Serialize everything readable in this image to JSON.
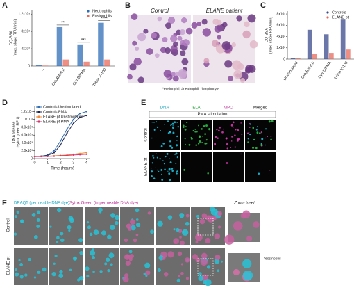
{
  "panel_labels": [
    "A",
    "B",
    "C",
    "D",
    "E",
    "F"
  ],
  "chart_data": [
    {
      "type": "bar",
      "ylabel": [
        "DQ-BSA",
        "(max. slope RFU/min)"
      ],
      "categories": [
        "–",
        "CytoB/fMLF",
        "CytoB/PMA",
        "Triton X-100"
      ],
      "series": [
        {
          "name": "Neutrophils",
          "color": "#2f6db5",
          "values": [
            30,
            900,
            500,
            1000
          ]
        },
        {
          "name": "Eosinophils",
          "color": "#e8695c",
          "values": [
            10,
            150,
            100,
            150
          ]
        }
      ],
      "annotations": [
        "**",
        "***",
        "****"
      ],
      "ylim": [
        0,
        1300
      ],
      "yticks": [
        0,
        {
          "value": 400,
          "label": "4x10²"
        },
        {
          "value": 800,
          "label": "8x10²"
        },
        {
          "value": 1200,
          "label": "1.2x10³"
        }
      ],
      "legend": "upper right"
    },
    {
      "type": "bar",
      "ylabel": [
        "DQ-BSA",
        "(max. slope RFU/min)"
      ],
      "categories": [
        "Unstimulated",
        "CytoB/fMLF",
        "CytoB/PMA",
        "Triton X-100"
      ],
      "series": [
        {
          "name": "Controls",
          "color": "#3b4a8c",
          "values": [
            20,
            520,
            440,
            700
          ]
        },
        {
          "name": "ELANE pt",
          "color": "#e8695c",
          "values": [
            20,
            90,
            110,
            170
          ]
        }
      ],
      "ylim": [
        0,
        850
      ],
      "yticks": [
        0,
        {
          "value": 200,
          "label": "2x10²"
        },
        {
          "value": 400,
          "label": "4x10²"
        },
        {
          "value": 600,
          "label": "6x10²"
        },
        {
          "value": 800,
          "label": "8x10²"
        }
      ],
      "legend": "upper right"
    },
    {
      "type": "line",
      "ylabel": [
        "DNA release",
        "(sytox green RFU)"
      ],
      "xlabel": "Time (hours)",
      "x": [
        0,
        0.5,
        1,
        1.5,
        2,
        2.5,
        3,
        3.5,
        4
      ],
      "series": [
        {
          "name": "Controls Unstimulated",
          "color": "#2f6db5",
          "values": [
            500,
            600,
            900,
            2000,
            4500,
            7500,
            10000,
            11500,
            12000
          ]
        },
        {
          "name": "Controls PMA",
          "color": "#1c2452",
          "values": [
            500,
            600,
            800,
            1500,
            3500,
            6500,
            9000,
            10500,
            11000
          ]
        },
        {
          "name": "ELANE pt Unstimulated",
          "color": "#f08a3c",
          "values": [
            500,
            550,
            600,
            700,
            800,
            900,
            1100,
            1300,
            1500
          ]
        },
        {
          "name": "ELANE pt PMA",
          "color": "#d6336c",
          "values": [
            500,
            520,
            550,
            600,
            700,
            800,
            900,
            1000,
            1100
          ]
        }
      ],
      "xlim": [
        0,
        4.3
      ],
      "xticks": [
        0,
        1,
        2,
        3,
        4
      ],
      "ylim": [
        0,
        13500
      ],
      "yticks": [
        0,
        {
          "value": 2000,
          "label": "2.0x10³"
        },
        {
          "value": 4000,
          "label": "4.0x10³"
        },
        {
          "value": 6000,
          "label": "6.0x10³"
        },
        {
          "value": 8000,
          "label": "8.0x10³"
        },
        {
          "value": 10000,
          "label": "1.0x10⁴"
        },
        {
          "value": 12000,
          "label": "1.2x10⁴"
        }
      ],
      "legend": "upper left"
    }
  ],
  "panel_b": {
    "labels": [
      "Control",
      "ELANE patient"
    ],
    "caption": "*eosinophil, #neutrophil, °lymphocyte"
  },
  "panel_e": {
    "columns": [
      "DNA",
      "ELA",
      "MPO",
      "Merged"
    ],
    "header": "PMA stimulation",
    "rows": [
      "Control",
      "ELANE pt"
    ]
  },
  "panel_f": {
    "legend": [
      "DRAQ5 (permeable DNA dye),",
      "Sytox Green (impermeable DNA dye)"
    ],
    "zoom": "Zoom inset",
    "rows": [
      "Control",
      "ELANE pt"
    ],
    "note": "*eosinophil"
  }
}
